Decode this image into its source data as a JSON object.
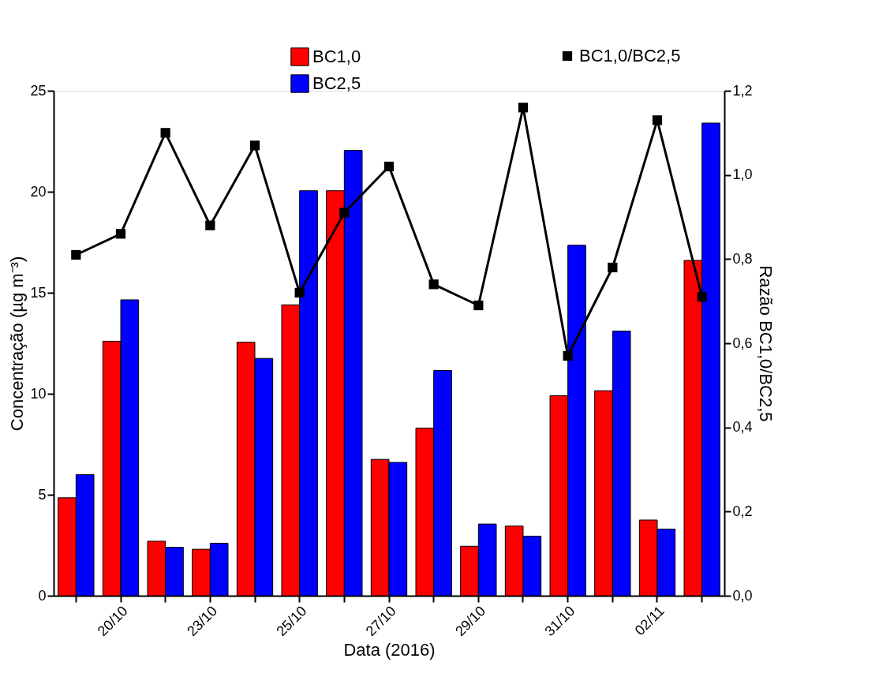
{
  "chart_data": {
    "type": "bar",
    "xlabel": "Data (2016)",
    "ylabel": "Concentração (µg m⁻³)",
    "y2label": "Razão BC1,0/BC2,5",
    "categories": [
      null,
      "20/10",
      null,
      "23/10",
      null,
      "25/10",
      null,
      "27/10",
      null,
      "29/10",
      null,
      "31/10",
      null,
      "02/11",
      null
    ],
    "series": [
      {
        "name": "BC1,0",
        "color": "#ff0000",
        "values": [
          4.85,
          12.6,
          2.7,
          2.3,
          12.55,
          14.4,
          20.05,
          6.75,
          8.3,
          2.45,
          3.45,
          9.9,
          10.15,
          3.75,
          16.6
        ]
      },
      {
        "name": "BC2,5",
        "color": "#0000ff",
        "values": [
          6.0,
          14.65,
          2.4,
          2.6,
          11.75,
          20.05,
          22.05,
          6.6,
          11.15,
          3.55,
          2.95,
          17.35,
          13.1,
          3.3,
          23.4
        ]
      },
      {
        "name": "BC1,0/BC2,5",
        "type": "line",
        "axis": "y2",
        "color": "#000000",
        "values": [
          0.81,
          0.86,
          1.1,
          0.88,
          1.07,
          0.72,
          0.91,
          1.02,
          0.74,
          0.69,
          1.16,
          0.57,
          0.78,
          1.13,
          0.71
        ]
      }
    ],
    "ylim": [
      0,
      25
    ],
    "yticks": [
      0,
      5,
      10,
      15,
      20,
      25
    ],
    "y2lim": [
      0,
      1.2
    ],
    "y2ticks": [
      {
        "value": 0,
        "label": "0,0"
      },
      {
        "value": 0.2,
        "label": "0,2"
      },
      {
        "value": 0.4,
        "label": "0,4"
      },
      {
        "value": 0.6,
        "label": "0,6"
      },
      {
        "value": 0.8,
        "label": "0,8"
      },
      {
        "value": 1.0,
        "label": "1,0"
      },
      {
        "value": 1.2,
        "label": "1,2"
      }
    ],
    "marker": "square",
    "line_style": "solid",
    "legend": "top",
    "grid": false
  }
}
